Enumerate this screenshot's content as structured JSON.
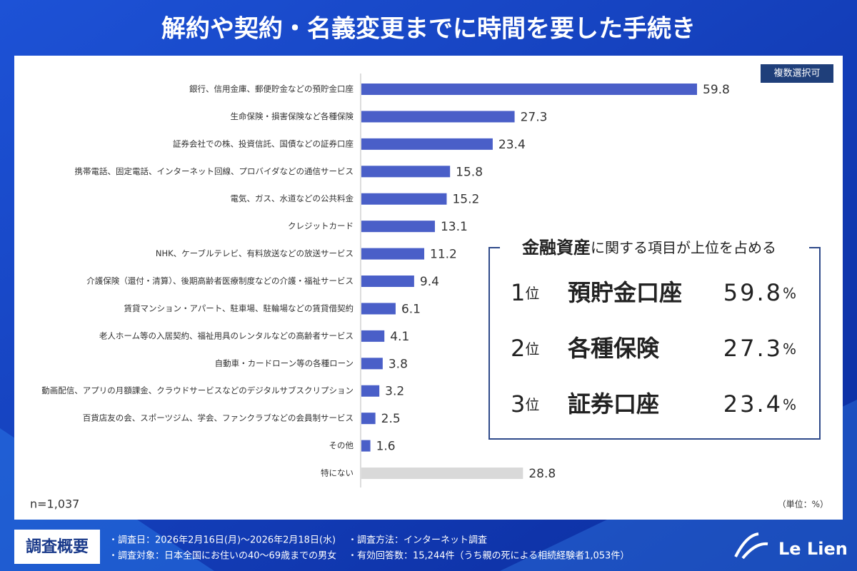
{
  "header": {
    "title": "解約や契約・名義変更までに時間を要した手続き"
  },
  "badge": "複数選択可",
  "sample_size": "n=1,037",
  "unit_note": "（単位：%）",
  "chart_data": {
    "type": "bar",
    "orientation": "horizontal",
    "categories": [
      "銀行、信用金庫、郵便貯金などの預貯金口座",
      "生命保険・損害保険など各種保険",
      "証券会社での株、投資信託、国債などの証券口座",
      "携帯電話、固定電話、インターネット回線、プロバイダなどの通信サービス",
      "電気、ガス、水道などの公共料金",
      "クレジットカード",
      "NHK、ケーブルテレビ、有料放送などの放送サービス",
      "介護保険（還付・清算）、後期高齢者医療制度などの介護・福祉サービス",
      "賃貸マンション・アパート、駐車場、駐輪場などの賃貸借契約",
      "老人ホーム等の入居契約、福祉用具のレンタルなどの高齢者サービス",
      "自動車・カードローン等の各種ローン",
      "動画配信、アプリの月額課金、クラウドサービスなどのデジタルサブスクリプション",
      "百貨店友の会、スポーツジム、学会、ファンクラブなどの会員制サービス",
      "その他",
      "特にない"
    ],
    "values": [
      59.8,
      27.3,
      23.4,
      15.8,
      15.2,
      13.1,
      11.2,
      9.4,
      6.1,
      4.1,
      3.8,
      3.2,
      2.5,
      1.6,
      28.8
    ],
    "colors": [
      "#4a5fc8",
      "#4a5fc8",
      "#4a5fc8",
      "#4a5fc8",
      "#4a5fc8",
      "#4a5fc8",
      "#4a5fc8",
      "#4a5fc8",
      "#4a5fc8",
      "#4a5fc8",
      "#4a5fc8",
      "#4a5fc8",
      "#4a5fc8",
      "#4a5fc8",
      "#d9d9d9"
    ]
  },
  "callout": {
    "heading": [
      "金融資産",
      "に関する項目が上位を占める"
    ],
    "ranks": [
      {
        "rank": "1",
        "suffix": "位",
        "item": "預貯金口座",
        "value": "59.8",
        "unit": "%"
      },
      {
        "rank": "2",
        "suffix": "位",
        "item": "各種保険",
        "value": "27.3",
        "unit": "%"
      },
      {
        "rank": "3",
        "suffix": "位",
        "item": "証券口座",
        "value": "23.4",
        "unit": "%"
      }
    ]
  },
  "footer": {
    "label": "調査概要",
    "items": [
      "・調査日：2026年2月16日(月)～2026年2月18日(水)",
      "・調査対象：日本全国にお住いの40～69歳までの男女",
      "・調査方法：インターネット調査",
      "・有効回答数：15,244件（うち親の死による相続経験者1,053件）"
    ],
    "logo": "Le Lien"
  }
}
